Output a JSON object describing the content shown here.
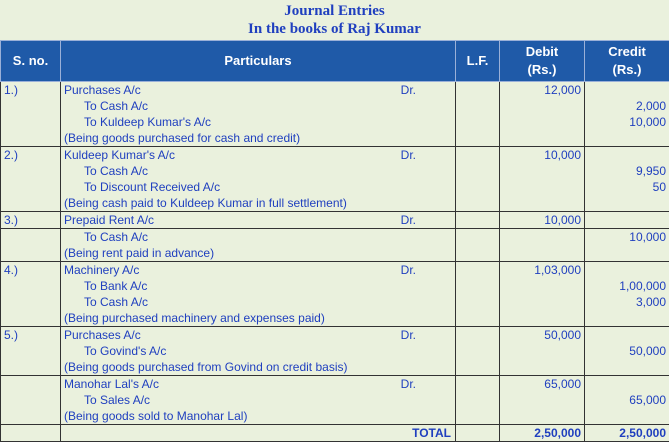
{
  "title": {
    "line1": "Journal Entries",
    "line2": "In the books of Raj Kumar"
  },
  "headers": {
    "sno": "S. no.",
    "particulars": "Particulars",
    "lf": "L.F.",
    "debit": "Debit",
    "debit_unit": "(Rs.)",
    "credit": "Credit",
    "credit_unit": "(Rs.)"
  },
  "dr_label": "Dr.",
  "entries": [
    {
      "sno": "1.)",
      "debit_account": "Purchases A/c",
      "debit_amount": "12,000",
      "credits": [
        {
          "account": "To Cash A/c",
          "amount": "2,000"
        },
        {
          "account": "To Kuldeep Kumar's A/c",
          "amount": "10,000"
        }
      ],
      "narration": "(Being goods purchased for cash and credit)"
    },
    {
      "sno": "2.)",
      "debit_account": "Kuldeep Kumar's A/c",
      "debit_amount": "10,000",
      "credits": [
        {
          "account": "To Cash A/c",
          "amount": "9,950"
        },
        {
          "account": "To Discount Received A/c",
          "amount": "50"
        }
      ],
      "narration": "(Being cash paid to Kuldeep Kumar in full settlement)"
    },
    {
      "sno": "3.)",
      "debit_account": "Prepaid Rent A/c",
      "debit_amount": "10,000",
      "credits": [
        {
          "account": "To Cash A/c",
          "amount": "10,000"
        }
      ],
      "narration": "(Being rent paid in advance)"
    },
    {
      "sno": "4.)",
      "debit_account": "Machinery A/c",
      "debit_amount": "1,03,000",
      "credits": [
        {
          "account": "To Bank A/c",
          "amount": "1,00,000"
        },
        {
          "account": "To Cash A/c",
          "amount": "3,000"
        }
      ],
      "narration": "(Being purchased machinery and expenses paid)"
    },
    {
      "sno": "5.)",
      "debit_account": "Purchases A/c",
      "debit_amount": "50,000",
      "credits": [
        {
          "account": "To Govind's A/c",
          "amount": "50,000"
        }
      ],
      "narration": "(Being goods purchased from Govind on credit basis)"
    },
    {
      "sno": "",
      "debit_account": "Manohar Lal's A/c",
      "debit_amount": "65,000",
      "credits": [
        {
          "account": "To Sales A/c",
          "amount": "65,000"
        }
      ],
      "narration": "(Being goods sold to Manohar Lal)"
    }
  ],
  "total": {
    "label": "TOTAL",
    "debit": "2,50,000",
    "credit": "2,50,000"
  }
}
